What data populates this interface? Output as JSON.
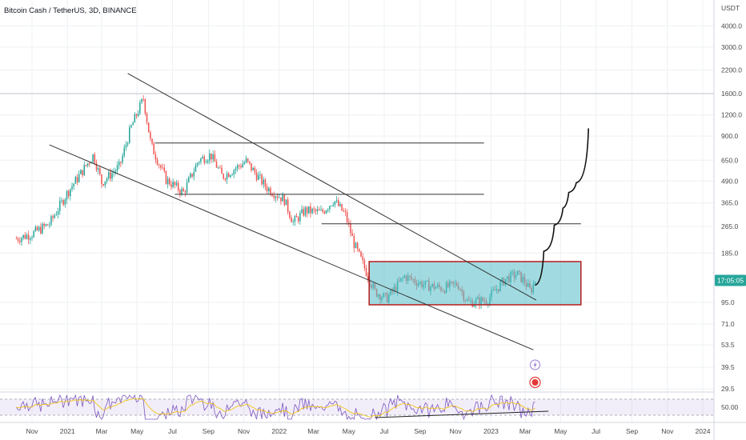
{
  "chart_data": {
    "type": "candlestick",
    "title": "Bitcoin Cash / TetherUS, 3D, BINANCE",
    "currency": "USDT",
    "scale": "log",
    "ylim": [
      25,
      5500
    ],
    "y_ticks": [
      {
        "value": 4000,
        "label": "4000.0"
      },
      {
        "value": 3000,
        "label": "3000.0"
      },
      {
        "value": 2200,
        "label": "2200.0"
      },
      {
        "value": 1600,
        "label": "1600.0"
      },
      {
        "value": 1200,
        "label": "1200.0"
      },
      {
        "value": 900,
        "label": "900.0"
      },
      {
        "value": 650,
        "label": "650.0"
      },
      {
        "value": 490,
        "label": "490.0"
      },
      {
        "value": 365,
        "label": "365.0"
      },
      {
        "value": 265,
        "label": "265.0"
      },
      {
        "value": 185,
        "label": "185.0"
      },
      {
        "value": 95,
        "label": "95.0"
      },
      {
        "value": 71,
        "label": "71.0"
      },
      {
        "value": 53.5,
        "label": "53.5"
      },
      {
        "value": 39.5,
        "label": "39.5"
      },
      {
        "value": 29.5,
        "label": "29.5"
      }
    ],
    "rsi_tick": {
      "value": 50,
      "label": "50.00"
    },
    "x_ticks": [
      {
        "date": "2020-11-01",
        "label": "Nov"
      },
      {
        "date": "2021-01-01",
        "label": "2021"
      },
      {
        "date": "2021-03-01",
        "label": "Mar"
      },
      {
        "date": "2021-05-01",
        "label": "May"
      },
      {
        "date": "2021-07-01",
        "label": "Jul"
      },
      {
        "date": "2021-09-01",
        "label": "Sep"
      },
      {
        "date": "2021-11-01",
        "label": "Nov"
      },
      {
        "date": "2022-01-01",
        "label": "2022"
      },
      {
        "date": "2022-03-01",
        "label": "Mar"
      },
      {
        "date": "2022-05-01",
        "label": "May"
      },
      {
        "date": "2022-07-01",
        "label": "Jul"
      },
      {
        "date": "2022-09-01",
        "label": "Sep"
      },
      {
        "date": "2022-11-01",
        "label": "Nov"
      },
      {
        "date": "2023-01-01",
        "label": "2023"
      },
      {
        "date": "2023-03-01",
        "label": "Mar"
      },
      {
        "date": "2023-05-01",
        "label": "May"
      },
      {
        "date": "2023-07-01",
        "label": "Jul"
      },
      {
        "date": "2023-09-01",
        "label": "Sep"
      },
      {
        "date": "2023-11-01",
        "label": "Nov"
      },
      {
        "date": "2024-01-01",
        "label": "2024"
      }
    ],
    "last_price": {
      "value": 128,
      "label": "17:05:05"
    },
    "price_anchors": [
      {
        "date": "2020-10-05",
        "close": 225
      },
      {
        "date": "2020-11-01",
        "close": 240
      },
      {
        "date": "2020-12-01",
        "close": 275
      },
      {
        "date": "2021-01-01",
        "close": 420
      },
      {
        "date": "2021-01-20",
        "close": 520
      },
      {
        "date": "2021-02-15",
        "close": 700
      },
      {
        "date": "2021-03-01",
        "close": 480
      },
      {
        "date": "2021-04-01",
        "close": 600
      },
      {
        "date": "2021-04-20",
        "close": 1000
      },
      {
        "date": "2021-05-12",
        "close": 1500
      },
      {
        "date": "2021-05-25",
        "close": 800
      },
      {
        "date": "2021-06-20",
        "close": 500
      },
      {
        "date": "2021-07-20",
        "close": 420
      },
      {
        "date": "2021-08-15",
        "close": 650
      },
      {
        "date": "2021-09-05",
        "close": 700
      },
      {
        "date": "2021-09-25",
        "close": 520
      },
      {
        "date": "2021-11-05",
        "close": 640
      },
      {
        "date": "2021-12-10",
        "close": 450
      },
      {
        "date": "2022-01-10",
        "close": 380
      },
      {
        "date": "2022-01-25",
        "close": 280
      },
      {
        "date": "2022-02-15",
        "close": 330
      },
      {
        "date": "2022-03-15",
        "close": 320
      },
      {
        "date": "2022-04-05",
        "close": 380
      },
      {
        "date": "2022-04-25",
        "close": 310
      },
      {
        "date": "2022-05-10",
        "close": 210
      },
      {
        "date": "2022-06-15",
        "close": 110
      },
      {
        "date": "2022-07-05",
        "close": 100
      },
      {
        "date": "2022-08-05",
        "close": 135
      },
      {
        "date": "2022-09-10",
        "close": 120
      },
      {
        "date": "2022-10-10",
        "close": 115
      },
      {
        "date": "2022-11-05",
        "close": 122
      },
      {
        "date": "2022-11-22",
        "close": 95
      },
      {
        "date": "2022-12-25",
        "close": 98
      },
      {
        "date": "2023-01-25",
        "close": 130
      },
      {
        "date": "2023-02-15",
        "close": 140
      },
      {
        "date": "2023-03-01",
        "close": 125
      },
      {
        "date": "2023-03-10",
        "close": 110
      },
      {
        "date": "2023-03-18",
        "close": 128
      }
    ],
    "drawings": {
      "channel_lines": [
        {
          "from": {
            "date": "2021-04-15",
            "price": 2100
          },
          "to": {
            "date": "2023-03-20",
            "price": 98
          }
        },
        {
          "from": {
            "date": "2020-12-01",
            "price": 800
          },
          "to": {
            "date": "2023-03-15",
            "price": 50
          }
        }
      ],
      "horizontal_lines": [
        {
          "from": "2021-06-01",
          "to": "2022-12-20",
          "price": 820
        },
        {
          "from": "2021-07-05",
          "to": "2022-12-20",
          "price": 410
        },
        {
          "from": "2022-03-15",
          "to": "2023-06-05",
          "price": 275
        }
      ],
      "box": {
        "from": "2022-06-05",
        "to": "2023-06-05",
        "high": 165,
        "low": 92
      },
      "rsi_trendline": {
        "from": "2022-06-15",
        "to": "2023-04-10"
      },
      "projection": [
        {
          "date": "2023-03-18",
          "price": 120
        },
        {
          "date": "2023-04-02",
          "price": 190
        },
        {
          "date": "2023-04-20",
          "price": 270
        },
        {
          "date": "2023-05-05",
          "price": 340
        },
        {
          "date": "2023-05-15",
          "price": 420
        },
        {
          "date": "2023-05-28",
          "price": 480
        },
        {
          "date": "2023-06-18",
          "price": 1000
        }
      ]
    }
  }
}
